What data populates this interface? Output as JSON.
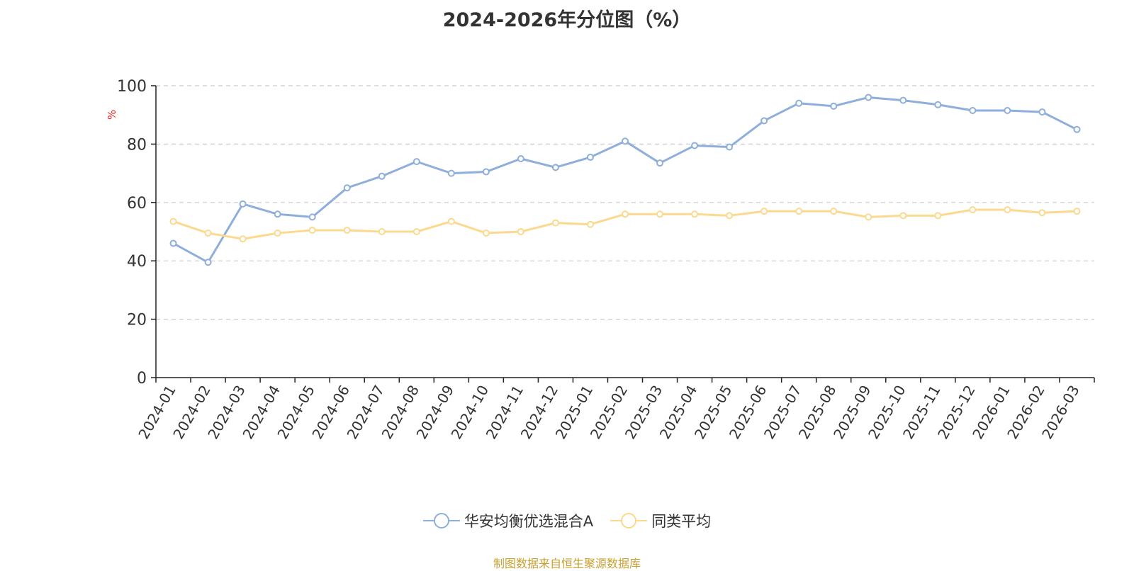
{
  "chart_data": {
    "type": "line",
    "title": "2024-2026年分位图（%）",
    "ylabel": "%",
    "xlabel": "",
    "ylim": [
      0,
      100
    ],
    "yticks": [
      0,
      20,
      40,
      60,
      80,
      100
    ],
    "grid": true,
    "legend_position": "bottom",
    "categories": [
      "2024-01",
      "2024-02",
      "2024-03",
      "2024-04",
      "2024-05",
      "2024-06",
      "2024-07",
      "2024-08",
      "2024-09",
      "2024-10",
      "2024-11",
      "2024-12",
      "2025-01",
      "2025-02",
      "2025-03",
      "2025-04",
      "2025-05",
      "2025-06",
      "2025-07",
      "2025-08",
      "2025-09",
      "2025-10",
      "2025-11",
      "2025-12",
      "2026-01",
      "2026-02",
      "2026-03"
    ],
    "series": [
      {
        "name": "华安均衡优选混合A",
        "color": "#8eaedc",
        "values": [
          46,
          39.5,
          59.5,
          56,
          55,
          65,
          69,
          74,
          70,
          70.5,
          75,
          72,
          75.5,
          81,
          73.5,
          79.5,
          79,
          88,
          94,
          93,
          96,
          95,
          93.5,
          91.5,
          91.5,
          91,
          85
        ]
      },
      {
        "name": "同类平均",
        "color": "#fbd98e",
        "values": [
          53.5,
          49.5,
          47.5,
          49.5,
          50.5,
          50.5,
          50,
          50,
          53.5,
          49.5,
          50,
          53,
          52.5,
          56,
          56,
          56,
          55.5,
          57,
          57,
          57,
          55,
          55.5,
          55.5,
          57.5,
          57.5,
          56.5,
          57
        ]
      }
    ]
  },
  "source_text": "制图数据来自恒生聚源数据库",
  "colors": {
    "axis": "#222222",
    "grid": "#cccccc",
    "tick_text": "#333333",
    "ylabel": "#ee2222",
    "source": "#c8a032"
  }
}
